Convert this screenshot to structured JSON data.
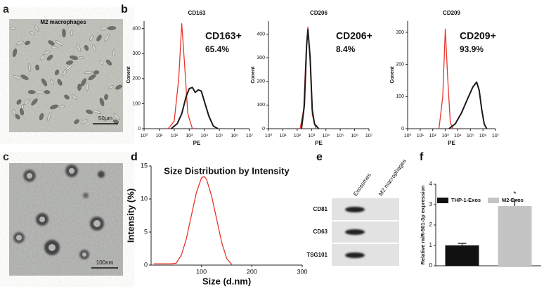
{
  "panel_labels": [
    "a",
    "b",
    "c",
    "d",
    "e",
    "f"
  ],
  "images": [
    {
      "title": "M2 macrophages",
      "scale_bar": "50μm"
    },
    {
      "scale_bar": "100nm"
    }
  ],
  "blot": {
    "lanes": [
      "Exosomes",
      "M2 macrophages"
    ],
    "proteins": [
      "CD81",
      "CD63",
      "TSG101"
    ]
  },
  "chart_data": [
    {
      "type": "line",
      "title": "CD163",
      "xlabel": "PE",
      "ylabel": "Conent",
      "xscale": "log",
      "annotation": [
        "CD163+",
        "65.4%"
      ],
      "xlim": [
        1,
        10000000
      ],
      "xticks": [
        {
          "value": 1,
          "label": "10⁰"
        },
        {
          "value": 10,
          "label": "10¹"
        },
        {
          "value": 100,
          "label": "10²"
        },
        {
          "value": 1000,
          "label": "10³"
        },
        {
          "value": 10000,
          "label": "10⁴"
        },
        {
          "value": 100000,
          "label": "10⁵"
        },
        {
          "value": 1000000,
          "label": "10⁶"
        },
        {
          "value": 10000000,
          "label": "10⁷"
        }
      ],
      "ylim": [
        0,
        430
      ],
      "yticks": [
        0,
        100,
        200,
        300,
        400
      ],
      "series": [
        {
          "color": "#e8352b",
          "x": [
            40,
            100,
            200,
            316,
            500,
            800,
            1600
          ],
          "values": [
            0,
            30,
            200,
            420,
            250,
            60,
            0
          ]
        },
        {
          "color": "#1a1a1a",
          "x": [
            63,
            160,
            316,
            630,
            1000,
            1600,
            2500,
            4000,
            6300,
            10000,
            20000,
            40000,
            80000
          ],
          "values": [
            0,
            20,
            60,
            130,
            160,
            165,
            145,
            155,
            150,
            110,
            50,
            10,
            0
          ]
        }
      ]
    },
    {
      "type": "line",
      "title": "CD206",
      "xlabel": "PE",
      "ylabel": "Conent",
      "xscale": "log",
      "annotation": [
        "CD206+",
        "8.4%"
      ],
      "xlim": [
        1,
        10000000
      ],
      "xticks": [
        {
          "value": 1,
          "label": "10⁰"
        },
        {
          "value": 10,
          "label": "10¹"
        },
        {
          "value": 100,
          "label": "10²"
        },
        {
          "value": 1000,
          "label": "10³"
        },
        {
          "value": 10000,
          "label": "10⁴"
        },
        {
          "value": 100000,
          "label": "10⁵"
        },
        {
          "value": 1000000,
          "label": "10⁶"
        },
        {
          "value": 10000000,
          "label": "10⁷"
        }
      ],
      "ylim": [
        0,
        455
      ],
      "yticks": [
        0,
        100,
        200,
        300,
        400
      ],
      "series": [
        {
          "color": "#e8352b",
          "x": [
            160,
            280,
            400,
            560,
            800,
            1120,
            2000
          ],
          "values": [
            0,
            80,
            300,
            430,
            280,
            60,
            0
          ]
        },
        {
          "color": "#1a1a1a",
          "x": [
            200,
            316,
            450,
            560,
            800,
            1120,
            1600,
            3160
          ],
          "values": [
            0,
            100,
            350,
            420,
            300,
            80,
            20,
            0
          ]
        }
      ]
    },
    {
      "type": "line",
      "title": "CD209",
      "xlabel": "PE",
      "ylabel": "Conent",
      "xscale": "log",
      "annotation": [
        "CD209+",
        "93.9%"
      ],
      "xlim": [
        1,
        10000000
      ],
      "xticks": [
        {
          "value": 1,
          "label": "10⁰"
        },
        {
          "value": 10,
          "label": "10¹"
        },
        {
          "value": 100,
          "label": "10²"
        },
        {
          "value": 1000,
          "label": "10³"
        },
        {
          "value": 10000,
          "label": "10⁴"
        },
        {
          "value": 100000,
          "label": "10⁵"
        },
        {
          "value": 1000000,
          "label": "10⁶"
        },
        {
          "value": 10000000,
          "label": "10⁷"
        }
      ],
      "ylim": [
        0,
        335
      ],
      "yticks": [
        0,
        100,
        200,
        300
      ],
      "series": [
        {
          "color": "#e8352b",
          "x": [
            316,
            630,
            1000,
            1600,
            2500,
            4000
          ],
          "values": [
            0,
            100,
            310,
            150,
            20,
            0
          ]
        },
        {
          "color": "#1a1a1a",
          "x": [
            2000,
            6300,
            20000,
            63000,
            160000,
            316000,
            500000,
            800000,
            1260000,
            2000000
          ],
          "values": [
            0,
            15,
            50,
            95,
            130,
            145,
            120,
            60,
            15,
            0
          ]
        }
      ]
    },
    {
      "type": "line",
      "title": "Size Distribution by Intensity",
      "xlabel": "Size (d.nm)",
      "ylabel": "Intensity (%)",
      "xlim": [
        0,
        300
      ],
      "xticks": [
        100,
        200,
        300
      ],
      "ylim": [
        0,
        15
      ],
      "yticks": [
        0,
        5,
        10,
        15
      ],
      "series": [
        {
          "color": "#e8352b",
          "x": [
            5,
            20,
            40,
            50,
            60,
            70,
            80,
            90,
            100,
            105,
            110,
            120,
            130,
            140,
            150,
            160
          ],
          "values": [
            0.2,
            0.2,
            0.2,
            0.3,
            1.5,
            4,
            7.5,
            11,
            13.2,
            13.4,
            13,
            10.5,
            7,
            3.5,
            1,
            0.1
          ]
        }
      ]
    },
    {
      "type": "bar",
      "ylabel": "Relative miR-501-3p expression",
      "categories": [
        "THP-1-Exos",
        "M2-Exos"
      ],
      "colors": [
        "#111111",
        "#c4c4c4"
      ],
      "values": [
        1.0,
        2.93
      ],
      "errors": [
        0.1,
        0.3
      ],
      "annotation": "*",
      "ylim": [
        0,
        4
      ],
      "yticks": [
        0,
        1,
        2,
        3,
        4
      ]
    }
  ]
}
